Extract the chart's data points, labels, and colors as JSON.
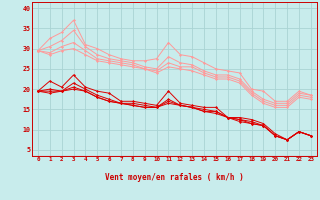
{
  "xlabel": "Vent moyen/en rafales ( km/h )",
  "bg_color": "#c8ecec",
  "grid_color": "#aad4d4",
  "x": [
    0,
    1,
    2,
    3,
    4,
    5,
    6,
    7,
    8,
    9,
    10,
    11,
    12,
    13,
    14,
    15,
    16,
    17,
    18,
    19,
    20,
    21,
    22,
    23
  ],
  "ylim": [
    3.5,
    41.5
  ],
  "xlim": [
    -0.5,
    23.5
  ],
  "yticks": [
    5,
    10,
    15,
    20,
    25,
    30,
    35,
    40
  ],
  "xticks": [
    0,
    1,
    2,
    3,
    4,
    5,
    6,
    7,
    8,
    9,
    10,
    11,
    12,
    13,
    14,
    15,
    16,
    17,
    18,
    19,
    20,
    21,
    22,
    23
  ],
  "rafales_lines": [
    [
      29.5,
      32.5,
      34.0,
      37.0,
      31.0,
      30.0,
      28.5,
      27.5,
      27.0,
      27.0,
      27.5,
      31.5,
      28.5,
      28.0,
      26.5,
      25.0,
      24.5,
      24.0,
      20.0,
      19.5,
      17.0,
      17.0,
      19.5,
      18.5
    ],
    [
      29.5,
      30.5,
      32.0,
      34.5,
      30.5,
      28.5,
      27.5,
      27.0,
      26.5,
      25.5,
      25.0,
      28.0,
      26.5,
      26.0,
      24.5,
      23.5,
      23.5,
      22.5,
      19.5,
      17.5,
      16.5,
      16.5,
      19.0,
      18.5
    ],
    [
      29.5,
      29.0,
      30.5,
      31.5,
      29.5,
      27.5,
      27.0,
      26.5,
      26.0,
      25.0,
      24.5,
      26.5,
      25.5,
      25.5,
      24.0,
      23.0,
      23.0,
      22.0,
      19.0,
      17.0,
      16.0,
      16.0,
      18.5,
      18.0
    ],
    [
      29.5,
      28.5,
      29.5,
      30.0,
      28.5,
      27.0,
      26.5,
      26.0,
      25.5,
      25.0,
      24.0,
      25.5,
      25.0,
      24.5,
      23.5,
      22.5,
      22.5,
      21.5,
      18.5,
      16.5,
      15.5,
      15.5,
      18.0,
      17.5
    ]
  ],
  "moyen_lines": [
    [
      19.5,
      22.0,
      20.5,
      23.5,
      20.5,
      19.5,
      19.0,
      17.0,
      17.0,
      16.5,
      16.0,
      19.5,
      16.5,
      16.0,
      15.5,
      15.5,
      13.0,
      13.0,
      12.5,
      11.5,
      9.0,
      7.5,
      9.5,
      8.5
    ],
    [
      19.5,
      20.0,
      19.5,
      21.5,
      20.0,
      18.5,
      17.5,
      16.5,
      16.5,
      16.0,
      15.5,
      17.5,
      16.0,
      15.5,
      15.0,
      14.5,
      13.0,
      12.5,
      12.0,
      11.0,
      8.5,
      7.5,
      9.5,
      8.5
    ],
    [
      19.5,
      19.5,
      19.5,
      20.5,
      19.5,
      18.0,
      17.0,
      16.5,
      16.0,
      15.5,
      15.5,
      17.0,
      16.0,
      15.5,
      14.5,
      14.5,
      13.0,
      12.5,
      11.5,
      11.0,
      8.5,
      7.5,
      9.5,
      8.5
    ],
    [
      19.5,
      19.0,
      19.5,
      20.0,
      19.5,
      18.0,
      17.0,
      16.5,
      16.0,
      15.5,
      15.5,
      16.5,
      16.0,
      15.5,
      14.5,
      14.0,
      13.0,
      12.0,
      11.5,
      11.0,
      8.5,
      7.5,
      9.5,
      8.5
    ]
  ],
  "rafales_color": "#ff9999",
  "moyen_color": "#dd0000",
  "label_color": "#cc0000",
  "arrow_angles": [
    225,
    225,
    225,
    225,
    225,
    225,
    225,
    225,
    225,
    225,
    225,
    225,
    225,
    225,
    225,
    225,
    225,
    225,
    270,
    270,
    270,
    270,
    315,
    45
  ],
  "figsize": [
    3.2,
    2.0
  ],
  "dpi": 100
}
